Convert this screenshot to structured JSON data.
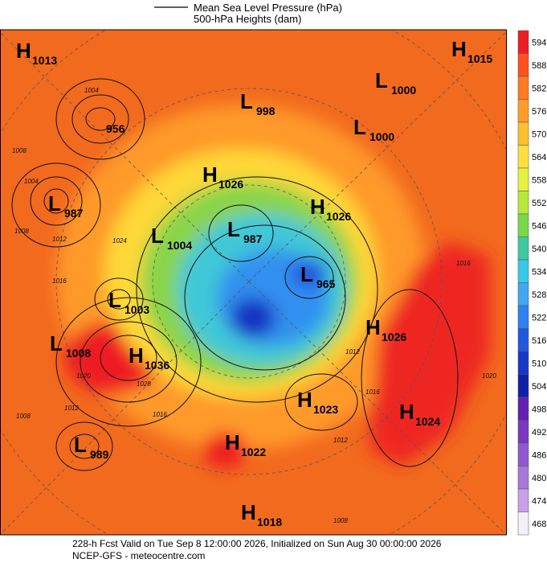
{
  "legend": {
    "items": [
      "Mean Sea Level Pressure (hPa)",
      "500-hPa Heights (dam)"
    ]
  },
  "centers": [
    {
      "letter": "H",
      "value": 1013
    },
    {
      "letter": "H",
      "value": 1015
    },
    {
      "letter": "L",
      "value": 1000
    },
    {
      "letter": "L",
      "value": 998
    },
    {
      "letter": "L",
      "value": 1000
    },
    {
      "letter": "H",
      "value": 1026
    },
    {
      "letter": "L",
      "value": 987
    },
    {
      "letter": "H",
      "value": 1026
    },
    {
      "letter": "L",
      "value": 1004
    },
    {
      "letter": "L",
      "value": 987
    },
    {
      "letter": "L",
      "value": 965
    },
    {
      "letter": "L",
      "value": 1003
    },
    {
      "letter": "L",
      "value": 1008
    },
    {
      "letter": "H",
      "value": 1036
    },
    {
      "letter": "H",
      "value": 1026
    },
    {
      "letter": "H",
      "value": 1023
    },
    {
      "letter": "H",
      "value": 1024
    },
    {
      "letter": "L",
      "value": 989
    },
    {
      "letter": "H",
      "value": 1022
    },
    {
      "letter": "H",
      "value": 1018
    }
  ],
  "low_value_labels": [
    956
  ],
  "isobar_labels": [
    1004,
    1008,
    1004,
    1008,
    1012,
    1024,
    1016,
    1020,
    1028,
    1012,
    1008,
    1016,
    1016,
    1012,
    1020,
    1016,
    1012,
    1008
  ],
  "colorbar": {
    "labels": [
      594,
      588,
      582,
      576,
      570,
      564,
      558,
      552,
      546,
      540,
      534,
      528,
      522,
      516,
      510,
      504,
      498,
      492,
      486,
      480,
      474,
      468
    ],
    "colors": [
      "#ee1c24",
      "#ff5020",
      "#ff7a22",
      "#ff9d2a",
      "#ffc030",
      "#ffe040",
      "#e8f040",
      "#b8e83c",
      "#78d84a",
      "#40c8a0",
      "#38c8e8",
      "#40a8f0",
      "#3080f0",
      "#2058e0",
      "#1838c8",
      "#1020a8",
      "#6020b0",
      "#7838c0",
      "#9058d0",
      "#a878d8",
      "#c8a0e8",
      "#f4f0f8"
    ]
  },
  "footer": [
    "228-h Fcst Valid on Tue Sep  8 12:00:00 2026, Initialized on Sun Aug 30 00:00:00 2026",
    "NCEP-GFS  - meteocentre.com"
  ]
}
